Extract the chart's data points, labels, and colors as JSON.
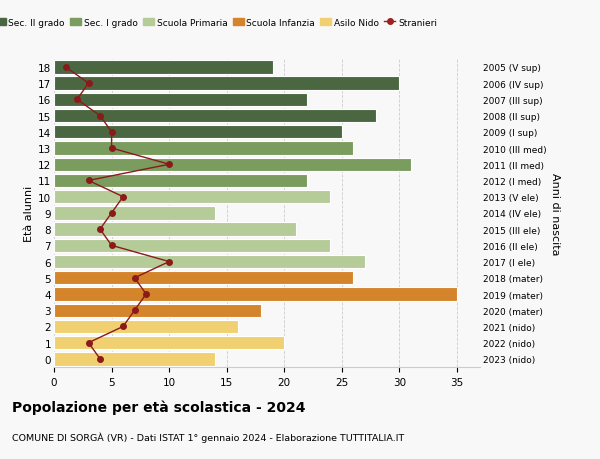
{
  "ages": [
    18,
    17,
    16,
    15,
    14,
    13,
    12,
    11,
    10,
    9,
    8,
    7,
    6,
    5,
    4,
    3,
    2,
    1,
    0
  ],
  "bar_values": [
    19,
    30,
    22,
    28,
    25,
    26,
    31,
    22,
    24,
    14,
    21,
    24,
    27,
    26,
    35,
    18,
    16,
    20,
    14
  ],
  "stranieri_values": [
    1,
    3,
    2,
    4,
    5,
    5,
    10,
    3,
    6,
    5,
    4,
    5,
    10,
    7,
    8,
    7,
    6,
    3,
    4
  ],
  "right_labels": [
    "2005 (V sup)",
    "2006 (IV sup)",
    "2007 (III sup)",
    "2008 (II sup)",
    "2009 (I sup)",
    "2010 (III med)",
    "2011 (II med)",
    "2012 (I med)",
    "2013 (V ele)",
    "2014 (IV ele)",
    "2015 (III ele)",
    "2016 (II ele)",
    "2017 (I ele)",
    "2018 (mater)",
    "2019 (mater)",
    "2020 (mater)",
    "2021 (nido)",
    "2022 (nido)",
    "2023 (nido)"
  ],
  "bar_colors": [
    "#4a6741",
    "#4a6741",
    "#4a6741",
    "#4a6741",
    "#4a6741",
    "#7a9c5e",
    "#7a9c5e",
    "#7a9c5e",
    "#b5cc99",
    "#b5cc99",
    "#b5cc99",
    "#b5cc99",
    "#b5cc99",
    "#d4842a",
    "#d4842a",
    "#d4842a",
    "#f0d070",
    "#f0d070",
    "#f0d070"
  ],
  "legend_labels": [
    "Sec. II grado",
    "Sec. I grado",
    "Scuola Primaria",
    "Scuola Infanzia",
    "Asilo Nido",
    "Stranieri"
  ],
  "legend_colors": [
    "#4a6741",
    "#7a9c5e",
    "#b5cc99",
    "#d4842a",
    "#f0d070",
    "#a02020"
  ],
  "ylabel_left": "Età alunni",
  "ylabel_right": "Anni di nascita",
  "title": "Popolazione per età scolastica - 2024",
  "subtitle": "COMUNE DI SORGÀ (VR) - Dati ISTAT 1° gennaio 2024 - Elaborazione TUTTITALIA.IT",
  "xlim": [
    0,
    37
  ],
  "xticks": [
    0,
    5,
    10,
    15,
    20,
    25,
    30,
    35
  ],
  "line_color": "#8b1a1a",
  "bg_color": "#f8f8f8",
  "grid_color": "#cccccc"
}
